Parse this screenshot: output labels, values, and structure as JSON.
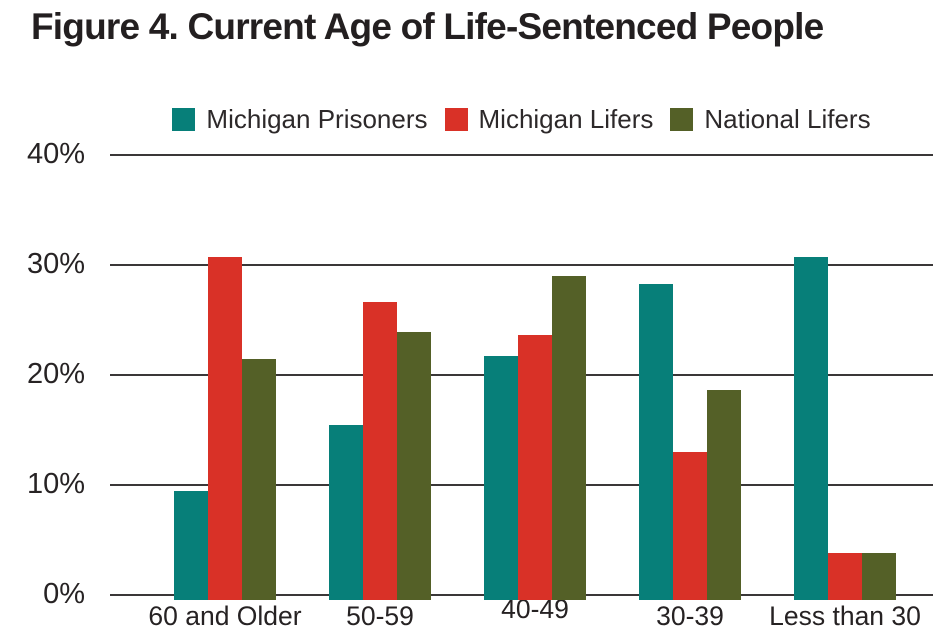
{
  "chart_data": {
    "type": "bar",
    "title": "Figure 4. Current Age of Life-Sentenced People",
    "categories": [
      "60 and Older",
      "50-59",
      "40-49",
      "30-39",
      "Less than 30"
    ],
    "series": [
      {
        "name": "Michigan Prisoners",
        "color": "#077f79",
        "values": [
          9.5,
          15.5,
          21.7,
          28.3,
          30.7
        ]
      },
      {
        "name": "Michigan Lifers",
        "color": "#d93127",
        "values": [
          30.7,
          26.6,
          23.6,
          13.0,
          3.8
        ]
      },
      {
        "name": "National Lifers",
        "color": "#546027",
        "values": [
          21.5,
          23.9,
          29.0,
          18.6,
          3.8
        ]
      }
    ],
    "xlabel": "",
    "ylabel": "",
    "ylim": [
      0,
      40
    ],
    "yticks": [
      0,
      10,
      20,
      30,
      40
    ],
    "ytick_suffix": "%",
    "grid": true,
    "legend_position": "top"
  },
  "colors": {
    "background": "#ffffff",
    "title_text": "#231f20",
    "axis_text": "#272324",
    "gridline": "#3a3738"
  }
}
